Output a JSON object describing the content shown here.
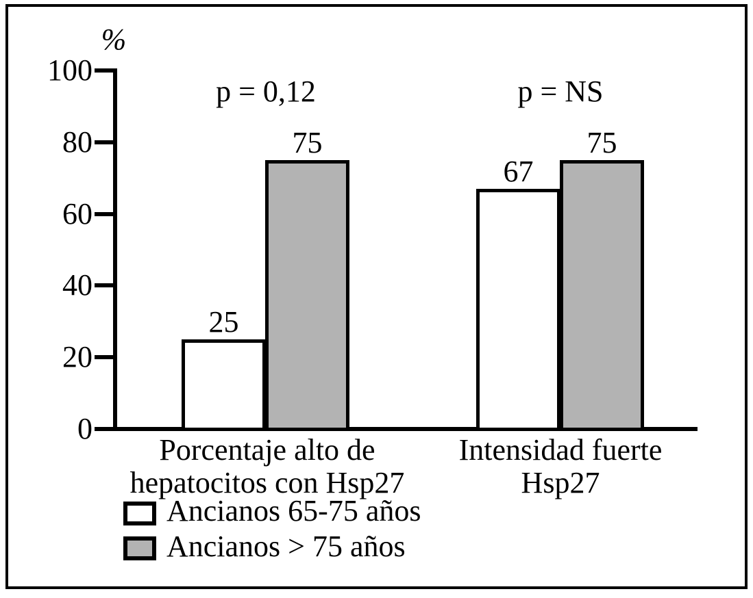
{
  "chart_data": {
    "type": "bar",
    "title": "",
    "y_axis_unit": "%",
    "ylabel": "%",
    "xlabel": "",
    "ylim": [
      0,
      100
    ],
    "y_ticks": [
      0,
      20,
      40,
      60,
      80,
      100
    ],
    "grid": false,
    "legend_position": "bottom-left",
    "categories": [
      [
        "Porcentaje alto de",
        "hepatocitos con Hsp27"
      ],
      [
        "Intensidad fuerte",
        "Hsp27"
      ]
    ],
    "series": [
      {
        "name": "Ancianos 65-75 años",
        "color": "#ffffff",
        "values": [
          25,
          67
        ]
      },
      {
        "name": "Ancianos > 75 años",
        "color": "#b3b3b3",
        "values": [
          75,
          75
        ]
      }
    ],
    "annotations": [
      {
        "group": 0,
        "text": "p = 0,12"
      },
      {
        "group": 1,
        "text": "p = NS"
      }
    ],
    "colors": {
      "line": "#000000",
      "bar_fill_series1": "#ffffff",
      "bar_fill_series2": "#b3b3b3"
    }
  }
}
